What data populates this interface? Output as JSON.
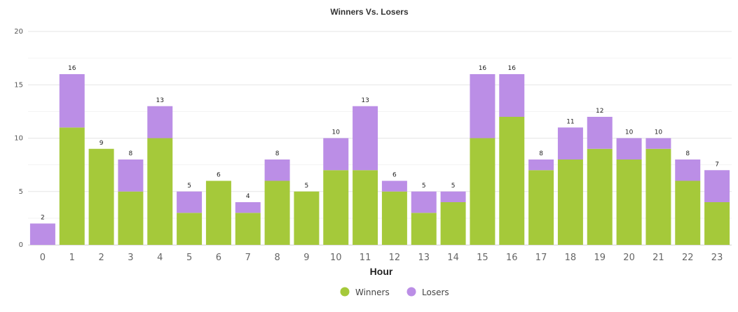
{
  "chart_data": {
    "type": "bar",
    "stacked": true,
    "title": "Winners Vs. Losers",
    "xlabel": "Hour",
    "ylabel": "",
    "ylim": [
      0,
      20
    ],
    "yticks": [
      0,
      5,
      10,
      15,
      20
    ],
    "grid": true,
    "legend_position": "bottom",
    "categories": [
      "0",
      "1",
      "2",
      "3",
      "4",
      "5",
      "6",
      "7",
      "8",
      "9",
      "10",
      "11",
      "12",
      "13",
      "14",
      "15",
      "16",
      "17",
      "18",
      "19",
      "20",
      "21",
      "22",
      "23"
    ],
    "series": [
      {
        "name": "Winners",
        "color": "#a5c93a",
        "values": [
          0,
          11,
          9,
          5,
          10,
          3,
          6,
          3,
          6,
          5,
          7,
          7,
          5,
          3,
          4,
          10,
          12,
          7,
          8,
          9,
          8,
          9,
          6,
          4
        ]
      },
      {
        "name": "Losers",
        "color": "#bb8ee6",
        "values": [
          2,
          5,
          0,
          3,
          3,
          2,
          0,
          1,
          2,
          0,
          3,
          6,
          1,
          2,
          1,
          6,
          4,
          1,
          3,
          3,
          2,
          1,
          2,
          3
        ]
      }
    ],
    "totals": [
      2,
      16,
      9,
      8,
      13,
      5,
      6,
      4,
      8,
      5,
      10,
      13,
      6,
      5,
      5,
      16,
      16,
      8,
      11,
      12,
      10,
      10,
      8,
      7
    ]
  }
}
